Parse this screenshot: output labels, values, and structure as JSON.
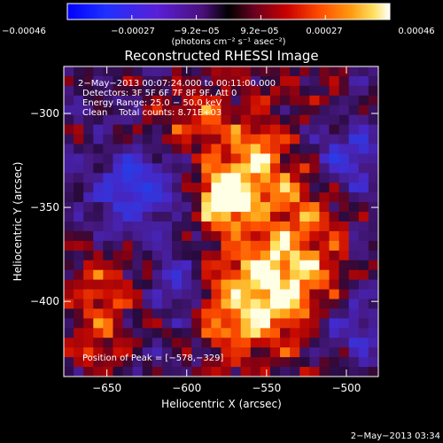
{
  "colorbar": {
    "ticks": [
      "−0.00046",
      "−0.00027",
      "−9.2e−05",
      "9.2e−05",
      "0.00027",
      "0.00046"
    ],
    "unit_label": "(photons cm⁻² s⁻¹ asec⁻²)",
    "range": [
      -0.00046,
      0.00046
    ]
  },
  "title": "Reconstructed RHESSI Image",
  "info_lines": [
    "2−May−2013 00:07:24.000 to 00:11:00.000",
    "Detectors: 3F 5F 6F 7F 8F 9F, Att 0",
    "Energy Range: 25.0 − 50.0 keV",
    "Clean    Total counts: 8.71E+03"
  ],
  "peak_label": "Position of Peak = [−578,−329]",
  "x_axis": {
    "label": "Heliocentric X (arcsec)",
    "range": [
      -677,
      -480
    ],
    "ticks": [
      {
        "value": -650,
        "label": "−650"
      },
      {
        "value": -600,
        "label": "−600"
      },
      {
        "value": -550,
        "label": "−550"
      },
      {
        "value": -500,
        "label": "−500"
      }
    ]
  },
  "y_axis": {
    "label": "Heliocentric Y (arcsec)",
    "range": [
      -440,
      -275
    ],
    "ticks": [
      {
        "value": -300,
        "label": "−300"
      },
      {
        "value": -350,
        "label": "−350"
      },
      {
        "value": -400,
        "label": "−400"
      }
    ]
  },
  "timestamp": "2−May−2013 03:34",
  "map": {
    "peak": [
      -578,
      -329
    ]
  }
}
